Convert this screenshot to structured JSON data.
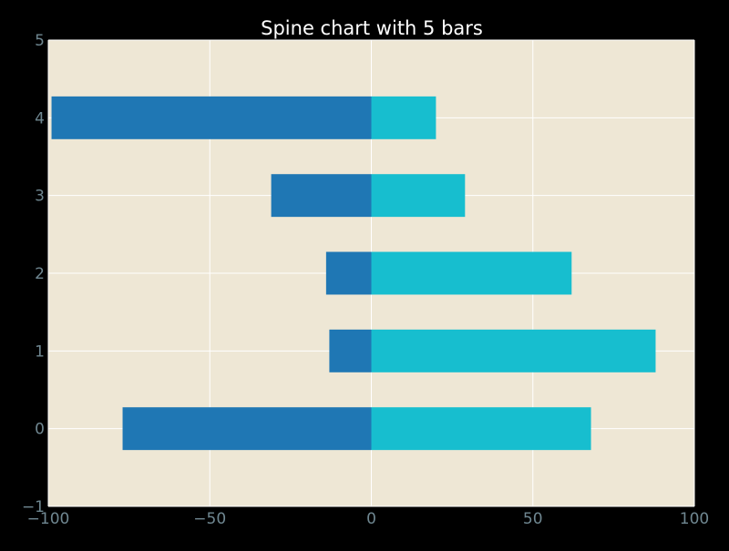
{
  "chart_data": {
    "type": "bar",
    "orientation": "horizontal",
    "title": "Spine chart with 5 bars",
    "xlabel": "",
    "ylabel": "",
    "xlim": [
      -100,
      100
    ],
    "ylim": [
      -1,
      5
    ],
    "xticks": [
      -100,
      -50,
      0,
      50,
      100
    ],
    "xtick_labels": [
      "−100",
      "−50",
      "0",
      "50",
      "100"
    ],
    "yticks": [
      -1,
      0,
      1,
      2,
      3,
      4,
      5
    ],
    "ytick_labels": [
      "−1",
      "0",
      "1",
      "2",
      "3",
      "4",
      "5"
    ],
    "categories": [
      0,
      1,
      2,
      3,
      4
    ],
    "series": [
      {
        "values": [
          -77,
          -13,
          -14,
          -31,
          -99
        ]
      },
      {
        "values": [
          68,
          88,
          62,
          29,
          20
        ]
      }
    ],
    "grid": true,
    "legend": "none"
  },
  "colors": {
    "figure_background": "#000000",
    "plot_background": "#EEE7D5",
    "grid": "#FFFFFF",
    "tick_label": "#6F8791",
    "title": "#FFFFFF",
    "series": [
      "#1F77B4",
      "#17BECF"
    ]
  }
}
